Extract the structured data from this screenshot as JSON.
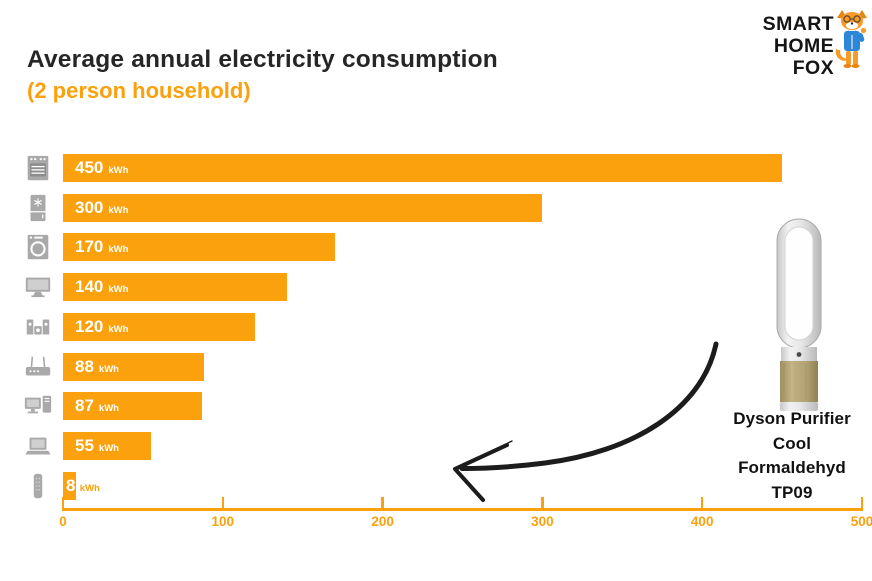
{
  "header": {
    "title": "Average annual electricity consumption",
    "subtitle": "(2 person household)"
  },
  "logo": {
    "lines": [
      "SMART",
      "HOME",
      "FOX"
    ]
  },
  "chart_data": {
    "type": "bar",
    "orientation": "horizontal",
    "title": "Average annual electricity consumption (2 person household)",
    "unit": "kWh",
    "categories": [
      "oven",
      "fridge-freezer",
      "washing-machine",
      "tv",
      "stereo-system",
      "wifi-router",
      "desktop-pc",
      "laptop",
      "air-purifier"
    ],
    "values": [
      450,
      300,
      170,
      140,
      120,
      88,
      87,
      55,
      8
    ],
    "xlim": [
      0,
      500
    ],
    "x_ticks": [
      0,
      100,
      200,
      300,
      400,
      500
    ],
    "grid": false,
    "legend": false,
    "bar_color": "#FBA10D"
  },
  "product": {
    "label_lines": [
      "Dyson Purifier",
      "Cool",
      "Formaldehyd",
      "TP09"
    ]
  },
  "colors": {
    "accent_orange": "#FBA10D",
    "title_black": "#262626",
    "icon_grey": "#A9A9A9",
    "arrow_black": "#1C1C1C",
    "fox_orange": "#F79A28",
    "fox_shirt_blue": "#2E86D9",
    "dyson_gold": "#B2A272"
  }
}
